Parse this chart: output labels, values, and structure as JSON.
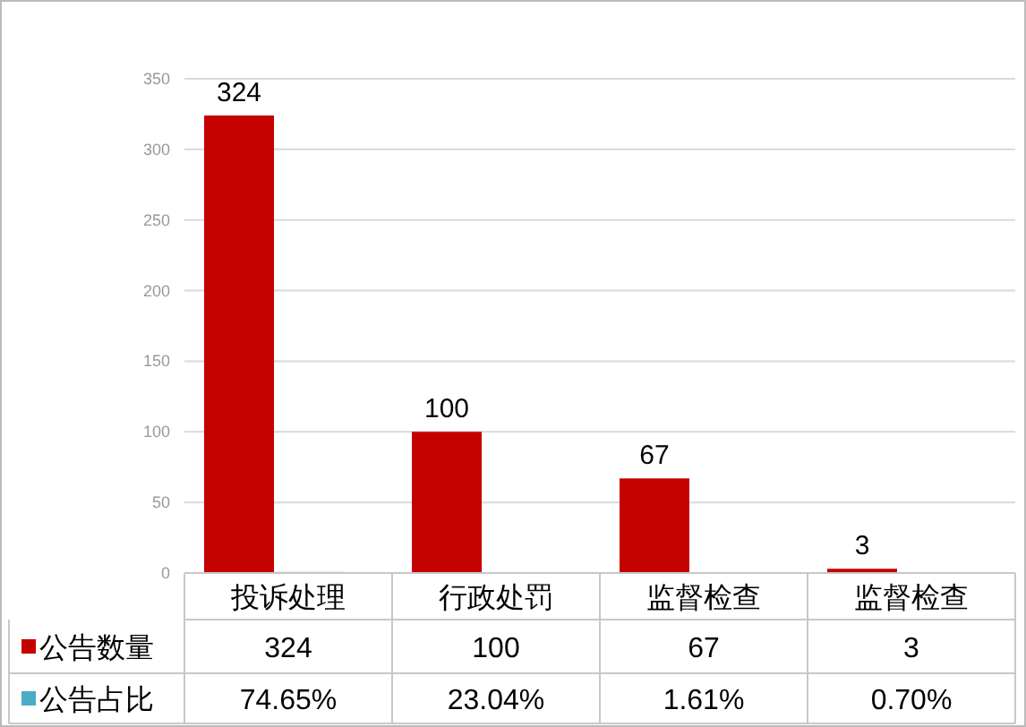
{
  "chart_data": {
    "type": "bar",
    "categories": [
      "投诉处理",
      "行政处罚",
      "监督检查",
      "监督检查"
    ],
    "series": [
      {
        "name": "公告数量",
        "color": "#c40000",
        "values": [
          324,
          100,
          67,
          3
        ],
        "value_labels": [
          "324",
          "100",
          "67",
          "3"
        ]
      },
      {
        "name": "公告占比",
        "color": "#4bacc6",
        "values": [
          0.7465,
          0.2304,
          0.0161,
          0.007
        ],
        "value_labels": [
          "74.65%",
          "23.04%",
          "1.61%",
          "0.70%"
        ]
      }
    ],
    "ylim": [
      0,
      350
    ],
    "yticks": [
      0,
      50,
      100,
      150,
      200,
      250,
      300,
      350
    ],
    "grid": "y",
    "legend": "bottom left"
  }
}
